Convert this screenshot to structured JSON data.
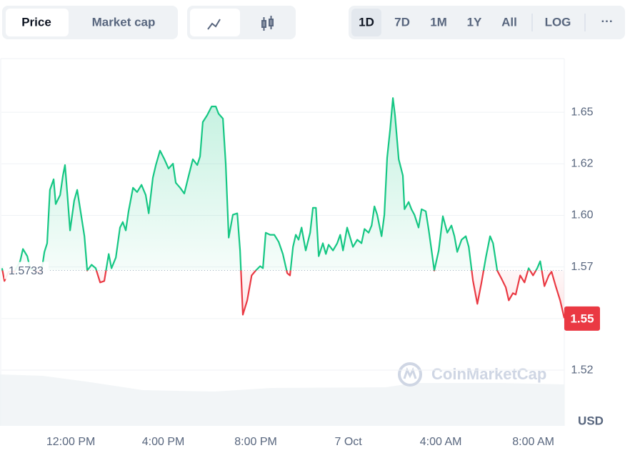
{
  "toolbar": {
    "tabs": [
      "Price",
      "Market cap"
    ],
    "ranges": [
      "1D",
      "7D",
      "1M",
      "1Y",
      "All"
    ],
    "log": "LOG",
    "more": "···"
  },
  "chart_data": {
    "type": "line",
    "watermark": "CoinMarketCap",
    "currency": "USD",
    "baseline": 1.5733,
    "color_up": "#16c784",
    "color_down": "#ea3943",
    "xlim": [
      -3.06,
      21.34
    ],
    "xticks": [
      {
        "value": 0,
        "label": "12:00 PM"
      },
      {
        "value": 4,
        "label": "4:00 PM"
      },
      {
        "value": 8,
        "label": "8:00 PM"
      },
      {
        "value": 12,
        "label": "7 Oct"
      },
      {
        "value": 16,
        "label": "4:00 AM"
      },
      {
        "value": 20,
        "label": "8:00 AM"
      }
    ],
    "ylim": [
      1.498,
      1.676
    ],
    "yticks": [
      {
        "value": 1.525,
        "label": "1.52"
      },
      1.55,
      {
        "value": 1.575,
        "label": "1.57"
      },
      {
        "value": 1.6,
        "label": "1.60"
      },
      {
        "value": 1.625,
        "label": "1.62"
      },
      1.65
    ],
    "current_tick": 1,
    "grid": true,
    "x": [
      -2.97,
      -2.87,
      -2.69,
      -2.44,
      -2.19,
      -2.07,
      -1.88,
      -1.76,
      -1.51,
      -1.27,
      -1.14,
      -1.02,
      -0.9,
      -0.74,
      -0.65,
      -0.46,
      -0.34,
      -0.25,
      -0.15,
      -0.03,
      0.15,
      0.28,
      0.4,
      0.59,
      0.71,
      0.9,
      1.08,
      1.27,
      1.45,
      1.64,
      1.76,
      1.95,
      2.13,
      2.25,
      2.38,
      2.5,
      2.69,
      2.87,
      3.06,
      3.24,
      3.37,
      3.55,
      3.68,
      3.86,
      4.05,
      4.23,
      4.42,
      4.54,
      4.73,
      4.91,
      5.1,
      5.28,
      5.47,
      5.59,
      5.71,
      5.9,
      6.09,
      6.27,
      6.39,
      6.58,
      6.7,
      6.83,
      7.01,
      7.2,
      7.32,
      7.44,
      7.63,
      7.82,
      8.0,
      8.19,
      8.31,
      8.43,
      8.62,
      8.8,
      8.99,
      9.17,
      9.36,
      9.48,
      9.61,
      9.73,
      9.85,
      9.98,
      10.16,
      10.35,
      10.47,
      10.6,
      10.72,
      10.9,
      11.03,
      11.15,
      11.34,
      11.52,
      11.65,
      11.77,
      11.95,
      12.08,
      12.2,
      12.39,
      12.57,
      12.7,
      12.88,
      13.01,
      13.13,
      13.25,
      13.44,
      13.56,
      13.68,
      13.81,
      13.93,
      14.02,
      14.18,
      14.36,
      14.43,
      14.61,
      14.73,
      14.86,
      15.04,
      15.17,
      15.35,
      15.48,
      15.6,
      15.72,
      15.91,
      16.09,
      16.28,
      16.46,
      16.59,
      16.71,
      16.9,
      17.08,
      17.21,
      17.39,
      17.58,
      17.76,
      17.95,
      18.13,
      18.26,
      18.44,
      18.63,
      18.81,
      18.94,
      19.12,
      19.24,
      19.43,
      19.62,
      19.8,
      19.99,
      20.17,
      20.3,
      20.48,
      20.67,
      20.79,
      20.97,
      21.16,
      21.34
    ],
    "values": [
      1.5744,
      1.5682,
      1.5727,
      1.5727,
      1.5778,
      1.5837,
      1.5802,
      1.5744,
      1.5727,
      1.5727,
      1.5823,
      1.5865,
      1.6124,
      1.6175,
      1.6055,
      1.6099,
      1.6193,
      1.6244,
      1.6106,
      1.5927,
      1.6072,
      1.6124,
      1.6037,
      1.5899,
      1.5733,
      1.5761,
      1.5744,
      1.5675,
      1.5682,
      1.5813,
      1.5744,
      1.5796,
      1.5941,
      1.5968,
      1.5927,
      1.602,
      1.6134,
      1.6113,
      1.6148,
      1.6099,
      1.601,
      1.6182,
      1.6244,
      1.6314,
      1.6272,
      1.6227,
      1.6251,
      1.6158,
      1.6134,
      1.6106,
      1.6193,
      1.6272,
      1.6244,
      1.6286,
      1.6452,
      1.6486,
      1.6528,
      1.6528,
      1.6493,
      1.6469,
      1.6251,
      1.5892,
      1.6003,
      1.601,
      1.583,
      1.5519,
      1.5588,
      1.5709,
      1.5733,
      1.5754,
      1.5744,
      1.5916,
      1.5906,
      1.5906,
      1.5872,
      1.5813,
      1.572,
      1.5709,
      1.5847,
      1.5906,
      1.5882,
      1.5941,
      1.583,
      1.5916,
      1.6037,
      1.6037,
      1.5802,
      1.5865,
      1.5813,
      1.5858,
      1.583,
      1.5865,
      1.5906,
      1.583,
      1.5941,
      1.5892,
      1.5847,
      1.5882,
      1.5865,
      1.5934,
      1.5916,
      1.5951,
      1.6044,
      1.6003,
      1.5899,
      1.6003,
      1.6279,
      1.6417,
      1.6569,
      1.6486,
      1.6272,
      1.6193,
      1.603,
      1.6065,
      1.603,
      1.6003,
      1.5941,
      1.603,
      1.602,
      1.5927,
      1.583,
      1.5733,
      1.583,
      1.5996,
      1.5916,
      1.5951,
      1.5899,
      1.5823,
      1.5882,
      1.5899,
      1.5847,
      1.5685,
      1.5571,
      1.5675,
      1.5796,
      1.5899,
      1.5865,
      1.5733,
      1.5692,
      1.5651,
      1.5588,
      1.5623,
      1.5616,
      1.5709,
      1.5675,
      1.5744,
      1.5709,
      1.5744,
      1.5778,
      1.5657,
      1.5709,
      1.5727,
      1.5657,
      1.5588,
      1.5502
    ]
  }
}
